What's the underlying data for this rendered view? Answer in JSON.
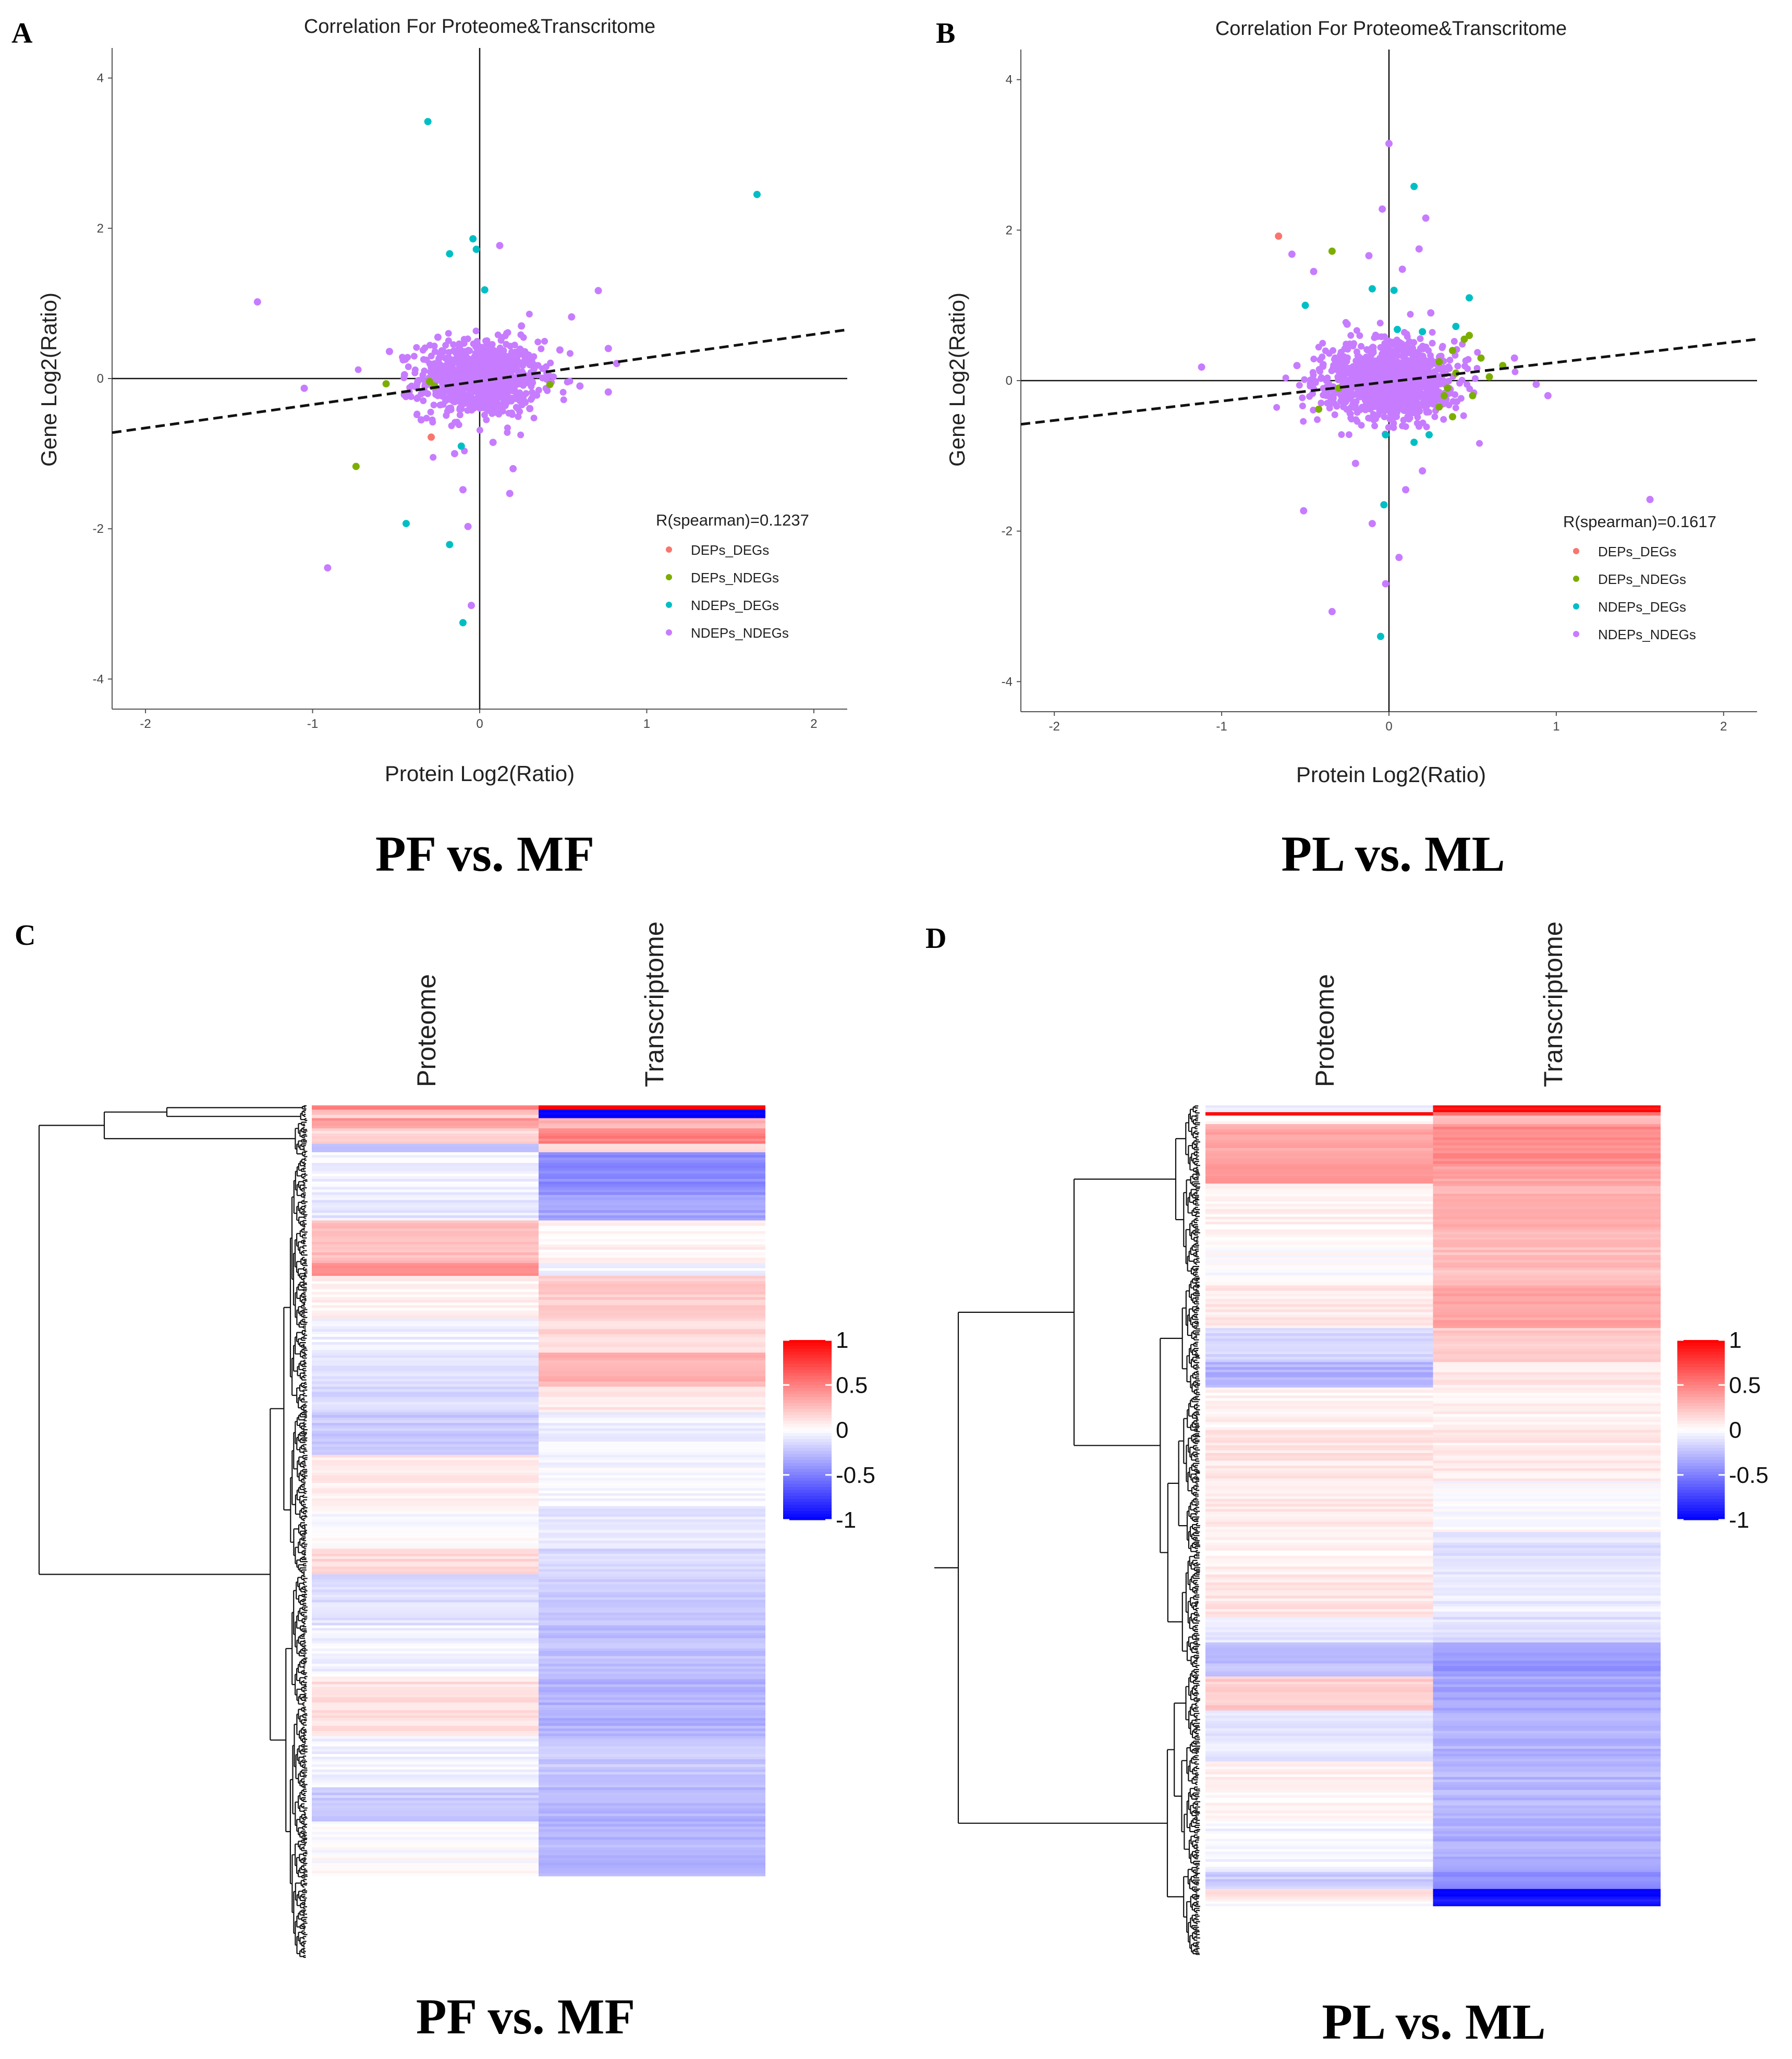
{
  "figure": {
    "panel_labels": [
      "A",
      "B",
      "C",
      "D"
    ],
    "captions": [
      "PF vs. MF",
      "PL vs. ML",
      "PF vs. MF",
      "PL vs. ML"
    ],
    "colors": {
      "DEPs_DEGs": "#F8766D",
      "DEPs_NDEGs": "#7CAE00",
      "NDEPs_DEGs": "#00BFC4",
      "NDEPs_NDEGs": "#C77CFF",
      "heat_low": "#0000FF",
      "heat_mid": "#FFFFFF",
      "heat_high": "#FF0000"
    }
  },
  "chart_data": [
    {
      "type": "scatter",
      "panel": "A",
      "title": "Correlation For Proteome&Transcritome",
      "xlabel": "Protein Log2(Ratio)",
      "ylabel": "Gene Log2(Ratio)",
      "xlim": [
        -2.2,
        2.2
      ],
      "ylim": [
        -4.4,
        4.4
      ],
      "xticks": [
        "-2",
        "-1",
        "0",
        "1",
        "2"
      ],
      "yticks": [
        "-4",
        "-2",
        "0",
        "2",
        "4"
      ],
      "annotation": "R(spearman)=0.1237",
      "legend": [
        "DEPs_DEGs",
        "DEPs_NDEGs",
        "NDEPs_DEGs",
        "NDEPs_NDEGs"
      ],
      "legend_position": "bottom-right",
      "trend_line": [
        [
          -2.2,
          -0.72
        ],
        [
          2.2,
          0.65
        ]
      ],
      "series": [
        {
          "name": "DEPs_DEGs",
          "points": [
            [
              -0.29,
              -0.78
            ]
          ]
        },
        {
          "name": "DEPs_NDEGs",
          "points": [
            [
              -0.74,
              -1.17
            ],
            [
              -0.56,
              -0.07
            ],
            [
              -0.3,
              -0.04
            ],
            [
              -0.27,
              -0.1
            ],
            [
              0.42,
              -0.08
            ]
          ]
        },
        {
          "name": "NDEPs_DEGs",
          "points": [
            [
              -0.31,
              3.42
            ],
            [
              1.66,
              2.45
            ],
            [
              -0.18,
              1.66
            ],
            [
              -0.04,
              1.86
            ],
            [
              -0.02,
              1.72
            ],
            [
              0.03,
              1.18
            ],
            [
              -0.11,
              -0.9
            ],
            [
              -0.44,
              -1.93
            ],
            [
              -0.18,
              -2.21
            ],
            [
              -0.1,
              -3.25
            ]
          ]
        },
        {
          "name": "NDEPs_NDEGs",
          "points": [
            [
              -1.33,
              1.02
            ],
            [
              -1.05,
              -0.13
            ],
            [
              0.12,
              1.77
            ],
            [
              0.55,
              0.82
            ],
            [
              0.71,
              1.17
            ],
            [
              -0.54,
              0.36
            ],
            [
              0.77,
              0.4
            ],
            [
              0.82,
              0.2
            ],
            [
              0.77,
              -0.18
            ],
            [
              -0.91,
              -2.52
            ],
            [
              -0.07,
              -1.97
            ],
            [
              -0.05,
              -3.02
            ],
            [
              -0.1,
              -1.48
            ],
            [
              0.18,
              -1.53
            ],
            [
              -0.35,
              -0.55
            ],
            [
              0.3,
              -0.4
            ],
            [
              0.48,
              0.38
            ],
            [
              -0.45,
              0.05
            ],
            [
              0.6,
              -0.1
            ],
            [
              0.2,
              -1.2
            ],
            [
              -0.15,
              -1.0
            ],
            [
              0.08,
              -0.85
            ],
            [
              -0.25,
              0.55
            ],
            [
              0.25,
              0.7
            ]
          ]
        }
      ],
      "cloud": {
        "center": [
          0.0,
          0.0
        ],
        "spread": [
          0.18,
          0.25
        ],
        "count": 900
      }
    },
    {
      "type": "scatter",
      "panel": "B",
      "title": "Correlation For Proteome&Transcritome",
      "xlabel": "Protein Log2(Ratio)",
      "ylabel": "Gene Log2(Ratio)",
      "xlim": [
        -2.2,
        2.2
      ],
      "ylim": [
        -4.4,
        4.4
      ],
      "xticks": [
        "-2",
        "-1",
        "0",
        "1",
        "2"
      ],
      "yticks": [
        "-4",
        "-2",
        "0",
        "2",
        "4"
      ],
      "annotation": "R(spearman)=0.1617",
      "legend": [
        "DEPs_DEGs",
        "DEPs_NDEGs",
        "NDEPs_DEGs",
        "NDEPs_NDEGs"
      ],
      "legend_position": "bottom-right",
      "trend_line": [
        [
          -2.2,
          -0.58
        ],
        [
          2.2,
          0.55
        ]
      ],
      "series": [
        {
          "name": "DEPs_DEGs",
          "points": [
            [
              -0.66,
              1.92
            ]
          ]
        },
        {
          "name": "DEPs_NDEGs",
          "points": [
            [
              -0.34,
              1.72
            ],
            [
              0.48,
              0.6
            ],
            [
              0.45,
              0.55
            ],
            [
              0.38,
              0.4
            ],
            [
              0.3,
              0.25
            ],
            [
              0.55,
              0.3
            ],
            [
              0.6,
              0.05
            ],
            [
              0.35,
              -0.1
            ],
            [
              0.5,
              -0.2
            ],
            [
              0.38,
              -0.48
            ],
            [
              0.3,
              -0.35
            ],
            [
              -0.42,
              -0.38
            ],
            [
              0.68,
              0.2
            ],
            [
              0.4,
              0.1
            ],
            [
              -0.3,
              -0.1
            ],
            [
              0.33,
              -0.2
            ]
          ]
        },
        {
          "name": "NDEPs_DEGs",
          "points": [
            [
              0.15,
              2.58
            ],
            [
              -0.1,
              1.22
            ],
            [
              0.03,
              1.2
            ],
            [
              0.48,
              1.1
            ],
            [
              0.4,
              0.72
            ],
            [
              -0.5,
              1.0
            ],
            [
              0.05,
              0.68
            ],
            [
              0.2,
              0.65
            ],
            [
              -0.02,
              -0.72
            ],
            [
              0.15,
              -0.82
            ],
            [
              0.24,
              -0.72
            ],
            [
              -0.05,
              -3.4
            ],
            [
              -0.03,
              -1.65
            ]
          ]
        },
        {
          "name": "NDEPs_NDEGs",
          "points": [
            [
              0.0,
              3.15
            ],
            [
              -0.04,
              2.28
            ],
            [
              0.08,
              1.48
            ],
            [
              0.22,
              2.16
            ],
            [
              0.18,
              1.75
            ],
            [
              -0.12,
              1.66
            ],
            [
              -0.45,
              1.45
            ],
            [
              -0.58,
              1.68
            ],
            [
              -1.12,
              0.18
            ],
            [
              -0.51,
              -1.73
            ],
            [
              -0.34,
              -3.07
            ],
            [
              -0.02,
              -2.7
            ],
            [
              0.06,
              -2.35
            ],
            [
              -0.1,
              -1.9
            ],
            [
              1.56,
              -1.58
            ],
            [
              0.88,
              -0.05
            ],
            [
              0.95,
              -0.2
            ],
            [
              0.75,
              0.3
            ],
            [
              -0.55,
              0.2
            ],
            [
              0.2,
              -1.2
            ],
            [
              0.1,
              -1.45
            ],
            [
              -0.2,
              -1.1
            ],
            [
              0.25,
              0.9
            ],
            [
              -0.25,
              0.75
            ]
          ]
        }
      ],
      "cloud": {
        "center": [
          0.0,
          0.0
        ],
        "spread": [
          0.2,
          0.25
        ],
        "count": 1100
      }
    },
    {
      "type": "heatmap",
      "panel": "C",
      "columns": [
        "Proteome",
        "Transcriptome"
      ],
      "colorbar": {
        "min": -1,
        "max": 1,
        "ticks": [
          "1",
          "0.5",
          "0",
          "-0.5",
          "-1"
        ]
      },
      "row_bands": [
        {
          "frac": 0.005,
          "values": [
            0.55,
            0.95
          ]
        },
        {
          "frac": 0.006,
          "values": [
            0.3,
            -0.95
          ]
        },
        {
          "frac": 0.004,
          "values": [
            0.1,
            -1.0
          ]
        },
        {
          "frac": 0.012,
          "values": [
            0.4,
            0.3
          ]
        },
        {
          "frac": 0.018,
          "values": [
            0.15,
            0.5
          ]
        },
        {
          "frac": 0.01,
          "values": [
            -0.3,
            0.1
          ]
        },
        {
          "frac": 0.05,
          "values": [
            -0.05,
            -0.45
          ]
        },
        {
          "frac": 0.03,
          "values": [
            -0.1,
            -0.35
          ]
        },
        {
          "frac": 0.05,
          "values": [
            0.25,
            0.05
          ]
        },
        {
          "frac": 0.015,
          "values": [
            0.45,
            -0.05
          ]
        },
        {
          "frac": 0.05,
          "values": [
            0.05,
            0.2
          ]
        },
        {
          "frac": 0.04,
          "values": [
            -0.05,
            0.15
          ]
        },
        {
          "frac": 0.04,
          "values": [
            -0.1,
            0.3
          ]
        },
        {
          "frac": 0.03,
          "values": [
            -0.15,
            0.1
          ]
        },
        {
          "frac": 0.05,
          "values": [
            -0.2,
            -0.05
          ]
        },
        {
          "frac": 0.06,
          "values": [
            0.08,
            -0.03
          ]
        },
        {
          "frac": 0.05,
          "values": [
            0.0,
            -0.1
          ]
        },
        {
          "frac": 0.03,
          "values": [
            0.15,
            -0.15
          ]
        },
        {
          "frac": 0.06,
          "values": [
            -0.12,
            -0.2
          ]
        },
        {
          "frac": 0.06,
          "values": [
            -0.05,
            -0.25
          ]
        },
        {
          "frac": 0.07,
          "values": [
            0.12,
            -0.3
          ]
        },
        {
          "frac": 0.06,
          "values": [
            -0.05,
            -0.22
          ]
        },
        {
          "frac": 0.04,
          "values": [
            -0.2,
            -0.3
          ]
        },
        {
          "frac": 0.064,
          "values": [
            0.0,
            -0.28
          ]
        }
      ]
    },
    {
      "type": "heatmap",
      "panel": "D",
      "columns": [
        "Proteome",
        "Transcriptome"
      ],
      "colorbar": {
        "min": -1,
        "max": 1,
        "ticks": [
          "1",
          "0.5",
          "0",
          "-0.5",
          "-1"
        ]
      },
      "row_bands": [
        {
          "frac": 0.008,
          "values": [
            -0.1,
            0.95
          ]
        },
        {
          "frac": 0.004,
          "values": [
            0.9,
            0.6
          ]
        },
        {
          "frac": 0.01,
          "values": [
            0.05,
            0.3
          ]
        },
        {
          "frac": 0.05,
          "values": [
            0.35,
            0.45
          ]
        },
        {
          "frac": 0.02,
          "values": [
            0.45,
            0.35
          ]
        },
        {
          "frac": 0.06,
          "values": [
            0.05,
            0.3
          ]
        },
        {
          "frac": 0.06,
          "values": [
            0.0,
            0.25
          ]
        },
        {
          "frac": 0.05,
          "values": [
            0.08,
            0.35
          ]
        },
        {
          "frac": 0.04,
          "values": [
            -0.15,
            0.2
          ]
        },
        {
          "frac": 0.03,
          "values": [
            -0.3,
            0.1
          ]
        },
        {
          "frac": 0.05,
          "values": [
            0.05,
            0.05
          ]
        },
        {
          "frac": 0.06,
          "values": [
            0.1,
            0.08
          ]
        },
        {
          "frac": 0.06,
          "values": [
            0.08,
            0.0
          ]
        },
        {
          "frac": 0.05,
          "values": [
            0.05,
            -0.12
          ]
        },
        {
          "frac": 0.05,
          "values": [
            0.1,
            -0.08
          ]
        },
        {
          "frac": 0.03,
          "values": [
            -0.1,
            -0.12
          ]
        },
        {
          "frac": 0.04,
          "values": [
            -0.25,
            -0.4
          ]
        },
        {
          "frac": 0.04,
          "values": [
            0.2,
            -0.35
          ]
        },
        {
          "frac": 0.06,
          "values": [
            -0.1,
            -0.3
          ]
        },
        {
          "frac": 0.07,
          "values": [
            0.05,
            -0.28
          ]
        },
        {
          "frac": 0.06,
          "values": [
            -0.05,
            -0.32
          ]
        },
        {
          "frac": 0.02,
          "values": [
            -0.2,
            -0.45
          ]
        },
        {
          "frac": 0.012,
          "values": [
            0.15,
            -0.95
          ]
        },
        {
          "frac": 0.008,
          "values": [
            0.0,
            -0.9
          ]
        }
      ]
    }
  ]
}
